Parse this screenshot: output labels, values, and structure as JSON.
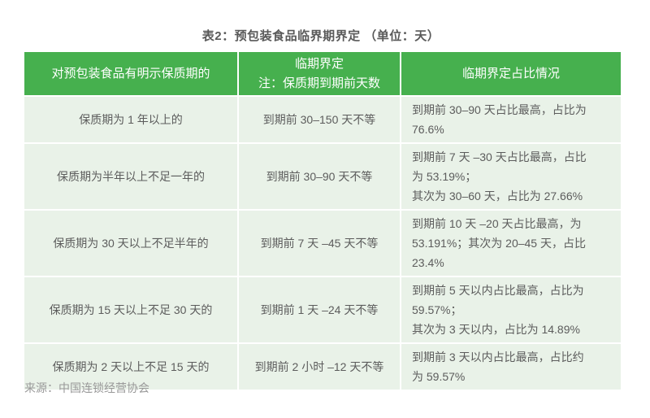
{
  "page": {
    "title": "表2：预包装食品临界期界定 （单位：天）",
    "source": "来源：中国连锁经营协会"
  },
  "colors": {
    "header_bg": "#46b04e",
    "row_bg": "#e9f2e8",
    "header_text": "#ffffff",
    "body_text": "#5c5c5c",
    "title_text": "#595959",
    "source_text": "#999999",
    "page_bg": "#ffffff"
  },
  "table": {
    "headers": [
      "对预包装食品有明示保质期的",
      "临期界定\n注：保质期到期前天数",
      "临期界定占比情况"
    ],
    "rows": [
      {
        "shelf_life": "保质期为 1 年以上的",
        "definition": "到期前 30–150 天不等",
        "share": "到期前 30–90 天占比最高，占比为\n76.6%"
      },
      {
        "shelf_life": "保质期为半年以上不足一年的",
        "definition": "到期前 30–90 天不等",
        "share": "到期前 7 天 –30 天占比最高，占比\n为 53.19%；\n其次为 30–60 天，占比为 27.66%"
      },
      {
        "shelf_life": "保质期为 30 天以上不足半年的",
        "definition": "到期前 7 天 –45 天不等",
        "share": "到期前 10 天 –20 天占比最高，为\n53.191%；其次为 20–45 天，占比\n23.4%"
      },
      {
        "shelf_life": "保质期为 15 天以上不足 30 天的",
        "definition": "到期前 1 天 –24 天不等",
        "share": "到期前 5 天以内占比最高，占比为\n59.57%；\n其次为 3 天以内，占比为 14.89%"
      },
      {
        "shelf_life": "保质期为 2 天以上不足 15 天的",
        "definition": "到期前 2 小时 –12 天不等",
        "share": "到期前 3 天以内占比最高，占比约\n为 59.57%"
      }
    ]
  }
}
